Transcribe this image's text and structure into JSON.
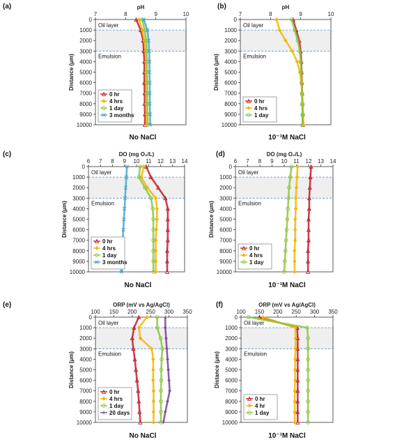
{
  "chart_data": [
    {
      "id": "a",
      "panel_label": "(a)",
      "type": "line",
      "xlabel": "pH",
      "ylabel": "Distance (μm)",
      "xlim": [
        7,
        10
      ],
      "xticks": [
        7,
        8,
        9,
        10
      ],
      "ylim": [
        0,
        10000
      ],
      "yticks": [
        0,
        1000,
        2000,
        3000,
        4000,
        5000,
        6000,
        7000,
        8000,
        9000,
        10000
      ],
      "caption": "No NaCl",
      "oil_label": "Oil layer",
      "emulsion_label": "Emulsion",
      "band": [
        1000,
        3000
      ],
      "legend_position": "bottom-left",
      "series": [
        {
          "name": "0 hr",
          "color": "#c0202a",
          "marker": "triangle",
          "x": [
            8.35,
            8.5,
            8.58,
            8.6,
            8.62,
            8.62,
            8.62,
            8.63,
            8.63,
            8.64,
            8.64
          ],
          "y": [
            0,
            1000,
            2000,
            3000,
            4000,
            5000,
            6000,
            7000,
            8000,
            9000,
            10000
          ]
        },
        {
          "name": "4 hrs",
          "color": "#f2b705",
          "marker": "diamond",
          "x": [
            8.45,
            8.55,
            8.62,
            8.66,
            8.67,
            8.67,
            8.68,
            8.68,
            8.68,
            8.69,
            8.69
          ],
          "y": [
            0,
            1000,
            2000,
            3000,
            4000,
            5000,
            6000,
            7000,
            8000,
            9000,
            10000
          ]
        },
        {
          "name": "1 day",
          "color": "#8cc63f",
          "marker": "circle",
          "x": [
            8.55,
            8.63,
            8.68,
            8.7,
            8.71,
            8.71,
            8.72,
            8.72,
            8.72,
            8.73,
            8.73
          ],
          "y": [
            0,
            1000,
            2000,
            3000,
            4000,
            5000,
            6000,
            7000,
            8000,
            9000,
            10000
          ]
        },
        {
          "name": "3 months",
          "color": "#4aa3c8",
          "marker": "x",
          "x": [
            8.6,
            8.72,
            8.76,
            8.78,
            8.79,
            8.79,
            8.8,
            8.8,
            8.8,
            8.81,
            8.81
          ],
          "y": [
            0,
            1000,
            2000,
            3000,
            4000,
            5000,
            6000,
            7000,
            8000,
            9000,
            10000
          ]
        }
      ]
    },
    {
      "id": "b",
      "panel_label": "(b)",
      "type": "line",
      "xlabel": "pH",
      "ylabel": "Distance (μm)",
      "xlim": [
        7,
        10
      ],
      "xticks": [
        7,
        8,
        9,
        10
      ],
      "ylim": [
        0,
        10000
      ],
      "yticks": [
        0,
        1000,
        2000,
        3000,
        4000,
        5000,
        6000,
        7000,
        8000,
        9000,
        10000
      ],
      "caption": "10⁻¹M NaCl",
      "oil_label": "Oil layer",
      "emulsion_label": "Emulsion",
      "band": [
        1000,
        3000
      ],
      "legend_position": "bottom-left",
      "series": [
        {
          "name": "0 hr",
          "color": "#c0202a",
          "marker": "triangle",
          "x": [
            8.75,
            8.85,
            8.95,
            9.0,
            9.02,
            9.03,
            9.04,
            9.05,
            9.06,
            9.07,
            9.07
          ],
          "y": [
            0,
            1000,
            2000,
            3000,
            4000,
            5000,
            6000,
            7000,
            8000,
            9000,
            10000
          ]
        },
        {
          "name": "4 hrs",
          "color": "#f2b705",
          "marker": "diamond",
          "x": [
            8.2,
            8.3,
            8.5,
            8.72,
            8.88,
            8.97,
            9.02,
            9.05,
            9.07,
            9.08,
            9.09
          ],
          "y": [
            0,
            1000,
            2000,
            3000,
            4000,
            5000,
            6000,
            7000,
            8000,
            9000,
            10000
          ]
        },
        {
          "name": "1 day",
          "color": "#8cc63f",
          "marker": "circle",
          "x": [
            8.7,
            8.8,
            8.9,
            8.97,
            9.0,
            9.02,
            9.03,
            9.04,
            9.05,
            9.06,
            9.06
          ],
          "y": [
            0,
            1000,
            2000,
            3000,
            4000,
            5000,
            6000,
            7000,
            8000,
            9000,
            10000
          ]
        }
      ]
    },
    {
      "id": "c",
      "panel_label": "(c)",
      "type": "line",
      "xlabel": "DO (mg O₂/L)",
      "ylabel": "Distance (μm)",
      "xlim": [
        6,
        14
      ],
      "xticks": [
        6,
        7,
        8,
        9,
        10,
        11,
        12,
        13,
        14
      ],
      "ylim": [
        0,
        10000
      ],
      "yticks": [
        0,
        1000,
        2000,
        3000,
        4000,
        5000,
        6000,
        7000,
        8000,
        9000,
        10000
      ],
      "caption": "No NaCl",
      "oil_label": "Oil layer",
      "emulsion_label": "Emulsion",
      "band": [
        1000,
        3000
      ],
      "legend_position": "bottom-left",
      "series": [
        {
          "name": "0 hr",
          "color": "#c0202a",
          "marker": "triangle",
          "x": [
            10.8,
            11.2,
            11.8,
            12.4,
            12.6,
            12.6,
            12.6,
            12.6,
            12.55,
            12.55,
            12.55
          ],
          "y": [
            0,
            1000,
            2000,
            3000,
            4000,
            5000,
            6000,
            7000,
            8000,
            9000,
            10000
          ]
        },
        {
          "name": "4 hrs",
          "color": "#f2b705",
          "marker": "diamond",
          "x": [
            10.6,
            10.4,
            10.9,
            11.6,
            11.7,
            11.7,
            11.65,
            11.6,
            11.6,
            11.6,
            11.6
          ],
          "y": [
            0,
            1000,
            2000,
            3000,
            4000,
            5000,
            6000,
            7000,
            8000,
            9000,
            10000
          ]
        },
        {
          "name": "1 day",
          "color": "#8cc63f",
          "marker": "circle",
          "x": [
            10.3,
            10.2,
            10.7,
            11.2,
            11.35,
            11.4,
            11.4,
            11.4,
            11.4,
            11.4,
            11.4
          ],
          "y": [
            0,
            1000,
            2000,
            3000,
            4000,
            5000,
            6000,
            7000,
            8000,
            9000,
            10000
          ]
        },
        {
          "name": "3 months",
          "color": "#4aa3c8",
          "marker": "x",
          "x": [
            9.2,
            9.15,
            9.1,
            9.05,
            9.0,
            8.95,
            8.9,
            8.85,
            8.8,
            8.8,
            8.75
          ],
          "y": [
            0,
            1000,
            2000,
            3000,
            4000,
            5000,
            6000,
            7000,
            8000,
            9000,
            10000
          ]
        }
      ]
    },
    {
      "id": "d",
      "panel_label": "(d)",
      "type": "line",
      "xlabel": "DO (mg O₂/L)",
      "ylabel": "Distance (μm)",
      "xlim": [
        6,
        14
      ],
      "xticks": [
        6,
        7,
        8,
        9,
        10,
        11,
        12,
        13,
        14
      ],
      "ylim": [
        0,
        10000
      ],
      "yticks": [
        0,
        1000,
        2000,
        3000,
        4000,
        5000,
        6000,
        7000,
        8000,
        9000,
        10000
      ],
      "caption": "10⁻¹M NaCl",
      "oil_label": "Oil layer",
      "emulsion_label": "Emulsion",
      "band": [
        1000,
        3000
      ],
      "legend_position": "bottom-left",
      "series": [
        {
          "name": "0 hr",
          "color": "#c0202a",
          "marker": "triangle",
          "x": [
            12.2,
            12.15,
            12.1,
            12.05,
            12.05,
            12.0,
            12.0,
            12.0,
            11.95,
            11.95,
            11.95
          ],
          "y": [
            0,
            1000,
            2000,
            3000,
            4000,
            5000,
            6000,
            7000,
            8000,
            9000,
            10000
          ]
        },
        {
          "name": "4 hrs",
          "color": "#f2b705",
          "marker": "diamond",
          "x": [
            11.1,
            11.05,
            11.0,
            10.95,
            10.95,
            10.9,
            10.9,
            10.9,
            10.85,
            10.85,
            10.85
          ],
          "y": [
            0,
            1000,
            2000,
            3000,
            4000,
            5000,
            6000,
            7000,
            8000,
            9000,
            10000
          ]
        },
        {
          "name": "1 day",
          "color": "#8cc63f",
          "marker": "circle",
          "x": [
            10.6,
            10.5,
            10.4,
            10.35,
            10.3,
            10.25,
            10.2,
            10.15,
            10.1,
            10.05,
            10.0
          ],
          "y": [
            0,
            1000,
            2000,
            3000,
            4000,
            5000,
            6000,
            7000,
            8000,
            9000,
            10000
          ]
        }
      ]
    },
    {
      "id": "e",
      "panel_label": "(e)",
      "type": "line",
      "xlabel": "ORP (mV vs Ag/AgCl)",
      "ylabel": "Distance (μm)",
      "xlim": [
        100,
        350
      ],
      "xticks": [
        100,
        150,
        200,
        250,
        300,
        350
      ],
      "ylim": [
        0,
        10000
      ],
      "yticks": [
        0,
        1000,
        2000,
        3000,
        4000,
        5000,
        6000,
        7000,
        8000,
        9000,
        10000
      ],
      "caption": "No NaCl",
      "oil_label": "Oil layer",
      "emulsion_label": "Emulsion",
      "band": [
        1000,
        3000
      ],
      "legend_position": "bottom-left",
      "series": [
        {
          "name": "0 hr",
          "color": "#c0202a",
          "marker": "triangle",
          "x": [
            218,
            205,
            200,
            203,
            207,
            210,
            213,
            216,
            218,
            220,
            222
          ],
          "y": [
            0,
            1000,
            2000,
            3000,
            4000,
            5000,
            6000,
            7000,
            8000,
            9000,
            10000
          ]
        },
        {
          "name": "4 hrs",
          "color": "#f2b705",
          "marker": "diamond",
          "x": [
            240,
            218,
            222,
            253,
            257,
            257,
            257,
            258,
            258,
            258,
            258
          ],
          "y": [
            0,
            1000,
            2000,
            3000,
            4000,
            5000,
            6000,
            7000,
            8000,
            9000,
            10000
          ]
        },
        {
          "name": "1 day",
          "color": "#8cc63f",
          "marker": "circle",
          "x": [
            268,
            268,
            277,
            282,
            280,
            279,
            279,
            278,
            278,
            278,
            278
          ],
          "y": [
            0,
            1000,
            2000,
            3000,
            4000,
            5000,
            6000,
            7000,
            8000,
            9000,
            10000
          ]
        },
        {
          "name": "20 days",
          "color": "#7b3f98",
          "marker": "plus",
          "x": [
            290,
            290,
            292,
            294,
            296,
            298,
            300,
            302,
            296,
            290,
            285
          ],
          "y": [
            0,
            1000,
            2000,
            3000,
            4000,
            5000,
            6000,
            7000,
            8000,
            9000,
            10000
          ]
        }
      ]
    },
    {
      "id": "f",
      "panel_label": "(f)",
      "type": "line",
      "xlabel": "ORP (mV vs Ag/AgCl)",
      "ylabel": "Distance (μm)",
      "xlim": [
        100,
        350
      ],
      "xticks": [
        100,
        150,
        200,
        250,
        300,
        350
      ],
      "ylim": [
        0,
        10000
      ],
      "yticks": [
        0,
        1000,
        2000,
        3000,
        4000,
        5000,
        6000,
        7000,
        8000,
        9000,
        10000
      ],
      "caption": "10⁻¹M NaCl",
      "oil_label": "Oil layer",
      "emulsion_label": "Emulsion",
      "band": [
        1000,
        3000
      ],
      "legend_position": "bottom-left",
      "series": [
        {
          "name": "0 hr",
          "color": "#c0202a",
          "marker": "triangle",
          "x": [
            150,
            253,
            254,
            254,
            254,
            254,
            254,
            254,
            254,
            254,
            254
          ],
          "y": [
            0,
            1000,
            2000,
            3000,
            4000,
            5000,
            6000,
            7000,
            8000,
            9000,
            10000
          ]
        },
        {
          "name": "4 hr",
          "color": "#f2b705",
          "marker": "diamond",
          "x": [
            160,
            248,
            248,
            248,
            247,
            247,
            247,
            246,
            246,
            246,
            246
          ],
          "y": [
            0,
            1000,
            2000,
            3000,
            4000,
            5000,
            6000,
            7000,
            8000,
            9000,
            10000
          ]
        },
        {
          "name": "1 day",
          "color": "#8cc63f",
          "marker": "circle",
          "x": [
            120,
            280,
            282,
            282,
            282,
            282,
            282,
            282,
            282,
            282,
            282
          ],
          "y": [
            0,
            1000,
            2000,
            3000,
            4000,
            5000,
            6000,
            7000,
            8000,
            9000,
            10000
          ]
        }
      ]
    }
  ]
}
